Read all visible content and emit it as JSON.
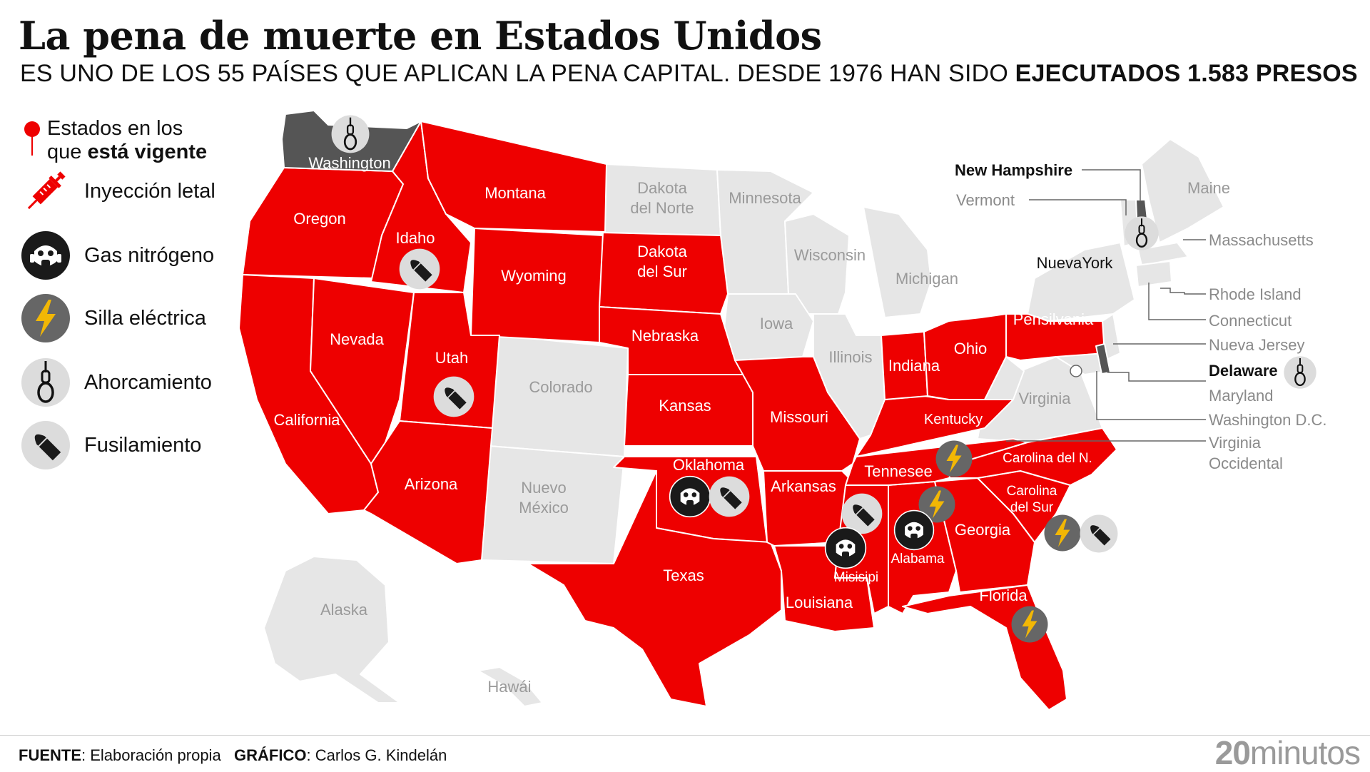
{
  "title": "La pena de muerte en Estados Unidos",
  "subtitle": {
    "normal": "ES UNO DE LOS 55 PAÍSES QUE APLICAN LA PENA CAPITAL. DESDE 1976 HAN SIDO ",
    "bold": "EJECUTADOS 1.583 PRESOS"
  },
  "legend": {
    "vigente_line1": "Estados en los",
    "vigente_line2_normal": "que ",
    "vigente_line2_bold": "está vigente",
    "items": [
      {
        "icon": "syringe-icon",
        "label": "Inyección letal"
      },
      {
        "icon": "gas-mask-icon",
        "label": "Gas nitrógeno"
      },
      {
        "icon": "lightning-icon",
        "label": "Silla eléctrica"
      },
      {
        "icon": "noose-icon",
        "label": "Ahorcamiento"
      },
      {
        "icon": "bullet-icon",
        "label": "Fusilamiento"
      }
    ]
  },
  "colors": {
    "death_penalty": "#ee0000",
    "no_death_penalty": "#e6e6e6",
    "hanging_only": "#555555",
    "icon_dark": "#1a1a1a",
    "icon_light": "#dcdcdc",
    "bolt": "#f2b705"
  },
  "states": {
    "washington": "Washington",
    "oregon": "Oregon",
    "california": "California",
    "nevada": "Nevada",
    "idaho": "Idaho",
    "montana": "Montana",
    "wyoming": "Wyoming",
    "utah": "Utah",
    "arizona": "Arizona",
    "colorado": "Colorado",
    "nuevo_mexico_1": "Nuevo",
    "nuevo_mexico_2": "México",
    "dakota_norte_1": "Dakota",
    "dakota_norte_2": "del Norte",
    "dakota_sur_1": "Dakota",
    "dakota_sur_2": "del Sur",
    "nebraska": "Nebraska",
    "kansas": "Kansas",
    "oklahoma": "Oklahoma",
    "texas": "Texas",
    "minnesota": "Minnesota",
    "iowa": "Iowa",
    "missouri": "Missouri",
    "arkansas": "Arkansas",
    "louisiana": "Louisiana",
    "wisconsin": "Wisconsin",
    "illinois": "Illinois",
    "michigan": "Michigan",
    "indiana": "Indiana",
    "ohio": "Ohio",
    "kentucky": "Kentucky",
    "tennessee": "Tennesee",
    "misisipi": "Misisipi",
    "alabama": "Alabama",
    "georgia": "Georgia",
    "florida": "Florida",
    "carolina_sur_1": "Carolina",
    "carolina_sur_2": "del Sur",
    "carolina_norte": "Carolina del N.",
    "virginia": "Virginia",
    "pensilvania": "Pensilvania",
    "nueva_york": "NuevaYork",
    "maine": "Maine",
    "alaska": "Alaska",
    "hawai": "Hawái"
  },
  "callouts": {
    "new_hampshire": "New Hampshire",
    "vermont": "Vermont",
    "massachusetts": "Massachusetts",
    "rhode_island": "Rhode Island",
    "connecticut": "Connecticut",
    "nueva_jersey": "Nueva Jersey",
    "delaware": "Delaware",
    "maryland": "Maryland",
    "washington_dc": "Washington D.C.",
    "virginia_occidental_1": "Virginia",
    "virginia_occidental_2": "Occidental"
  },
  "footer": {
    "source_label": "FUENTE",
    "source_text": ": Elaboración propia",
    "graphic_label": "GRÁFICO",
    "graphic_text": ": Carlos G. Kindelán"
  },
  "brand": {
    "num": "20",
    "name": "minutos"
  }
}
